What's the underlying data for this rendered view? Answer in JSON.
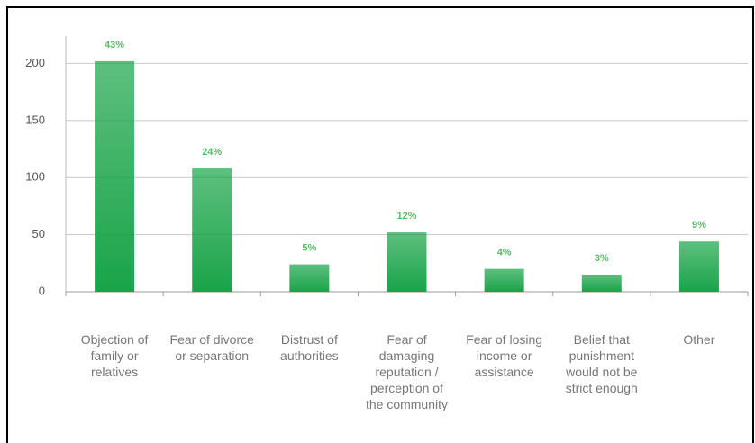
{
  "chart_data": {
    "type": "bar",
    "categories": [
      "Objection of family or relatives",
      "Fear of divorce or separation",
      "Distrust of authorities",
      "Fear of damaging reputation / perception of the community",
      "Fear of losing income or assistance",
      "Belief that punishment would not be strict enough",
      "Other"
    ],
    "values": [
      202,
      108,
      24,
      52,
      20,
      15,
      44
    ],
    "annotations": [
      "43%",
      "24%",
      "5%",
      "12%",
      "4%",
      "3%",
      "9%"
    ],
    "color": "#19a448",
    "ylim": [
      0,
      224
    ],
    "yticks": [
      0,
      50,
      100,
      150,
      200
    ],
    "grid": true
  }
}
